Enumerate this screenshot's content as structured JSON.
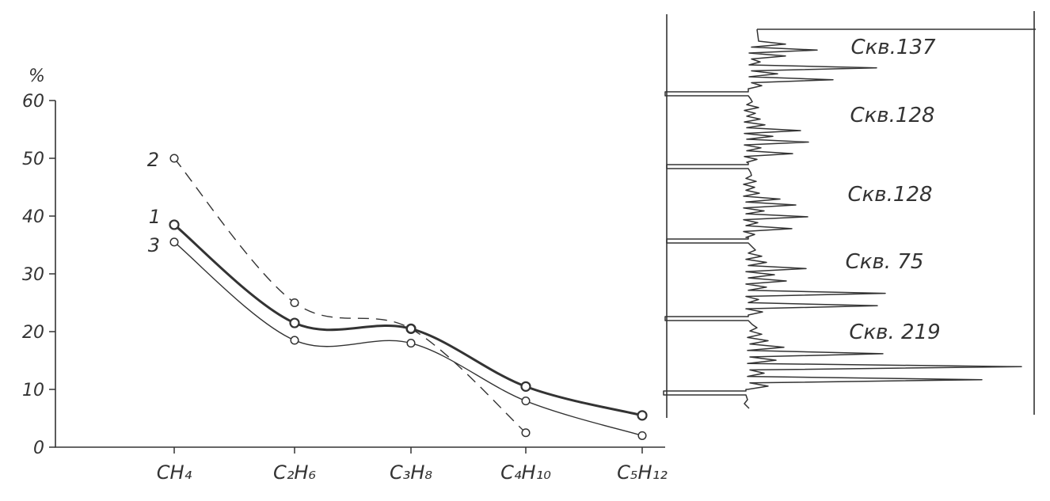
{
  "chart_data": [
    {
      "type": "line",
      "ylabel": "%",
      "ylim": [
        0,
        60
      ],
      "yticks": [
        0,
        10,
        20,
        30,
        40,
        50,
        60
      ],
      "categories": [
        "CH₄",
        "C₂H₆",
        "C₃H₈",
        "C₄H₁₀",
        "C₅H₁₂"
      ],
      "series": [
        {
          "name": "1",
          "values": [
            38.5,
            21.5,
            20.5,
            10.5,
            5.5
          ],
          "style": "bold"
        },
        {
          "name": "2",
          "values": [
            50,
            25,
            20.5,
            2.5,
            null
          ],
          "style": "dashed"
        },
        {
          "name": "3",
          "values": [
            35.5,
            18.5,
            18,
            8,
            2
          ],
          "style": "thin"
        }
      ]
    },
    {
      "type": "line",
      "trace": "log",
      "labels": [
        "Скв.137",
        "Скв.128",
        "Скв.128",
        "Скв. 75",
        "Скв. 219"
      ]
    }
  ],
  "colors": {
    "ink": "#333333",
    "paper": "#ffffff"
  }
}
